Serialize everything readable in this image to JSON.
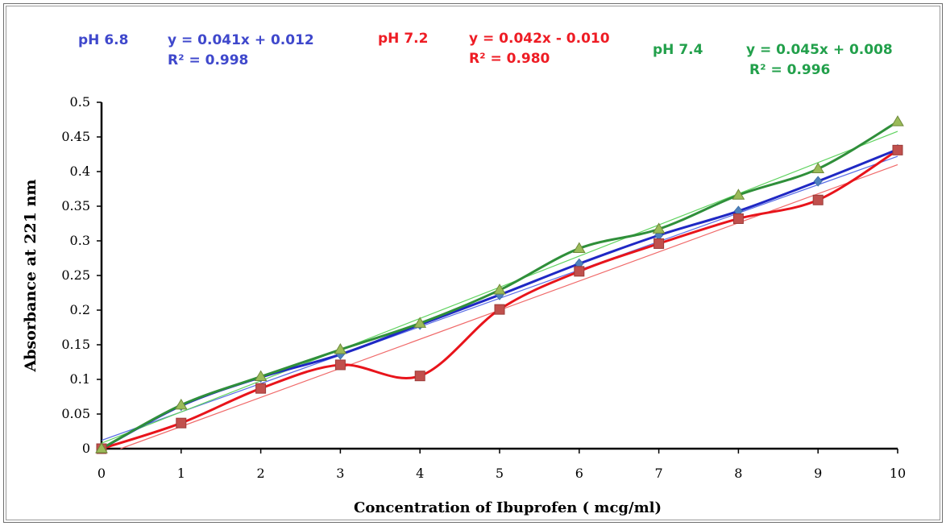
{
  "chart_data": {
    "type": "line",
    "xlabel": "Concentration of Ibuprofen ( mcg/ml)",
    "ylabel": "Absorbance at 221 nm",
    "x": [
      0,
      1,
      2,
      3,
      4,
      5,
      6,
      7,
      8,
      9,
      10
    ],
    "xlim": [
      0,
      10
    ],
    "ylim": [
      0,
      0.5
    ],
    "x_ticks": [
      "0",
      "1",
      "2",
      "3",
      "4",
      "5",
      "6",
      "7",
      "8",
      "9",
      "10"
    ],
    "y_ticks": [
      "0",
      "0.05",
      "0.1",
      "0.15",
      "0.2",
      "0.25",
      "0.3",
      "0.35",
      "0.4",
      "0.45",
      "0.5"
    ],
    "grid": false,
    "series": [
      {
        "name": "pH 6.8",
        "color": "#1f28c4",
        "trend_color": "#5a6ee6",
        "marker": "diamond",
        "marker_color": "#4f81bd",
        "values": [
          0.0,
          0.062,
          0.103,
          0.136,
          0.179,
          0.222,
          0.267,
          0.308,
          0.343,
          0.386,
          0.432
        ],
        "trendline": {
          "slope": 0.041,
          "intercept": 0.012
        },
        "equation": "y = 0.041x + 0.012",
        "r2": "R² = 0.998"
      },
      {
        "name": "pH 7.2",
        "color": "#e8141b",
        "trend_color": "#f06a6a",
        "marker": "square",
        "marker_color": "#c0504d",
        "values": [
          0.0,
          0.037,
          0.087,
          0.121,
          0.105,
          0.201,
          0.256,
          0.296,
          0.332,
          0.359,
          0.431
        ],
        "trendline": {
          "slope": 0.042,
          "intercept": -0.01
        },
        "equation": "y = 0.042x - 0.010",
        "r2": "R² = 0.980"
      },
      {
        "name": "pH 7.4",
        "color": "#2f8f3a",
        "trend_color": "#5fd35f",
        "marker": "triangle",
        "marker_color": "#9bbb59",
        "values": [
          0.0,
          0.063,
          0.104,
          0.143,
          0.181,
          0.229,
          0.289,
          0.317,
          0.366,
          0.404,
          0.472
        ],
        "trendline": {
          "slope": 0.045,
          "intercept": 0.008
        },
        "equation": "y = 0.045x + 0.008",
        "r2": "R² = 0.996"
      }
    ]
  }
}
